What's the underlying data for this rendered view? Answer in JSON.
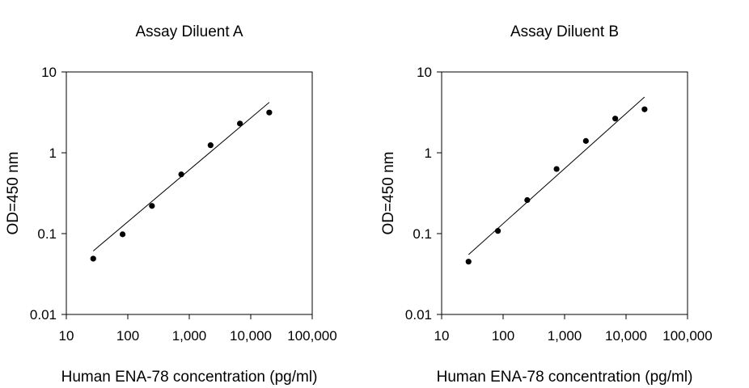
{
  "chart_data": [
    {
      "type": "scatter",
      "title": "Assay Diluent A",
      "xlabel": "Human ENA-78 concentration (pg/ml)",
      "ylabel": "OD=450 nm",
      "xscale": "log",
      "yscale": "log",
      "xlim": [
        10,
        100000
      ],
      "ylim": [
        0.01,
        10
      ],
      "xticks": [
        10,
        100,
        1000,
        10000,
        100000
      ],
      "xtick_labels": [
        "10",
        "100",
        "1,000",
        "10,000",
        "100,000"
      ],
      "yticks": [
        0.01,
        0.1,
        1,
        10
      ],
      "ytick_labels": [
        "0.01",
        "0.1",
        "1",
        "10"
      ],
      "grid": false,
      "points": [
        {
          "x": 27.4,
          "y": 0.049
        },
        {
          "x": 82.3,
          "y": 0.098
        },
        {
          "x": 247,
          "y": 0.22
        },
        {
          "x": 741,
          "y": 0.54
        },
        {
          "x": 2222,
          "y": 1.24
        },
        {
          "x": 6667,
          "y": 2.3
        },
        {
          "x": 20000,
          "y": 3.15
        }
      ],
      "fit_line": {
        "x": [
          27.4,
          20000
        ],
        "y": [
          0.061,
          4.2
        ]
      }
    },
    {
      "type": "scatter",
      "title": "Assay Diluent B",
      "xlabel": "Human ENA-78 concentration (pg/ml)",
      "ylabel": "OD=450 nm",
      "xscale": "log",
      "yscale": "log",
      "xlim": [
        10,
        100000
      ],
      "ylim": [
        0.01,
        10
      ],
      "xticks": [
        10,
        100,
        1000,
        10000,
        100000
      ],
      "xtick_labels": [
        "10",
        "100",
        "1,000",
        "10,000",
        "100,000"
      ],
      "yticks": [
        0.01,
        0.1,
        1,
        10
      ],
      "ytick_labels": [
        "0.01",
        "0.1",
        "1",
        "10"
      ],
      "grid": false,
      "points": [
        {
          "x": 27.4,
          "y": 0.045
        },
        {
          "x": 82.3,
          "y": 0.108
        },
        {
          "x": 247,
          "y": 0.26
        },
        {
          "x": 741,
          "y": 0.63
        },
        {
          "x": 2222,
          "y": 1.4
        },
        {
          "x": 6667,
          "y": 2.65
        },
        {
          "x": 20000,
          "y": 3.45
        }
      ],
      "fit_line": {
        "x": [
          27.4,
          20000
        ],
        "y": [
          0.055,
          4.9
        ]
      }
    }
  ]
}
